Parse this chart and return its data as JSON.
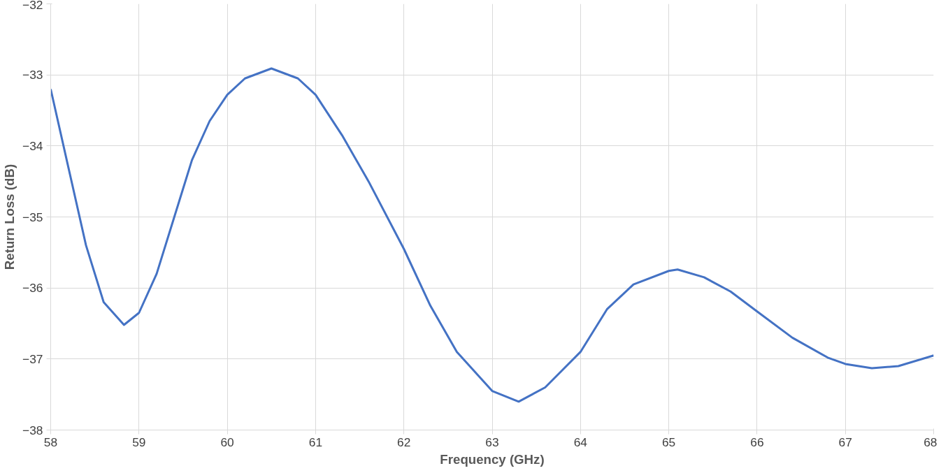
{
  "chart_data": {
    "type": "line",
    "xlabel": "Frequency (GHz)",
    "ylabel": "Return Loss (dB)",
    "xlim": [
      58,
      68
    ],
    "ylim": [
      -38,
      -32
    ],
    "xticks": [
      58,
      59,
      60,
      61,
      62,
      63,
      64,
      65,
      66,
      67,
      68
    ],
    "yticks": [
      -38,
      -37,
      -36,
      -35,
      -34,
      -33,
      -32
    ],
    "grid": true,
    "marker": "none",
    "line_style": "solid",
    "series": [
      {
        "color": "#4472c4",
        "x": [
          58.0,
          58.2,
          58.4,
          58.6,
          58.83,
          59.0,
          59.2,
          59.4,
          59.6,
          59.8,
          60.0,
          60.2,
          60.5,
          60.8,
          61.0,
          61.3,
          61.6,
          62.0,
          62.3,
          62.6,
          63.0,
          63.3,
          63.6,
          64.0,
          64.3,
          64.6,
          65.0,
          65.1,
          65.4,
          65.7,
          66.0,
          66.4,
          66.8,
          67.0,
          67.3,
          67.6,
          68.0
        ],
        "values": [
          -33.2,
          -34.3,
          -35.4,
          -36.2,
          -36.52,
          -36.35,
          -35.8,
          -35.0,
          -34.2,
          -33.65,
          -33.28,
          -33.05,
          -32.91,
          -33.05,
          -33.28,
          -33.85,
          -34.5,
          -35.45,
          -36.25,
          -36.9,
          -37.45,
          -37.6,
          -37.4,
          -36.9,
          -36.3,
          -35.95,
          -35.76,
          -35.74,
          -35.85,
          -36.05,
          -36.33,
          -36.7,
          -36.98,
          -37.07,
          -37.13,
          -37.1,
          -36.95
        ]
      }
    ]
  }
}
